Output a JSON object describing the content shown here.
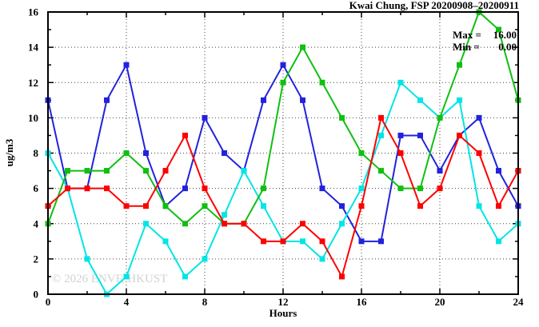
{
  "chart_data": {
    "type": "line",
    "title": "Kwai Chung, FSP 20200908–20200911",
    "xlabel": "Hours",
    "ylabel": "ug/m3",
    "xlim": [
      0,
      24
    ],
    "ylim": [
      0,
      16
    ],
    "grid": {
      "x_gridlines": [
        4,
        8,
        12,
        16,
        20
      ],
      "y_gridlines": [
        2,
        4,
        6,
        8,
        10,
        12,
        14
      ],
      "style": "dotted"
    },
    "x_axis": {
      "ticks_major": [
        0,
        4,
        8,
        12,
        16,
        20,
        24
      ],
      "ticks_minor": [
        2,
        6,
        10,
        14,
        18,
        22
      ],
      "tick_labels": [
        "0",
        "4",
        "8",
        "12",
        "16",
        "20",
        "24"
      ]
    },
    "y_axis": {
      "ticks_major": [
        0,
        2,
        4,
        6,
        8,
        10,
        12,
        14,
        16
      ],
      "ticks_minor": [
        1,
        3,
        5,
        7,
        9,
        11,
        13,
        15
      ],
      "tick_labels": [
        "0",
        "2",
        "4",
        "6",
        "8",
        "10",
        "12",
        "14",
        "16"
      ]
    },
    "x": [
      0,
      1,
      2,
      3,
      4,
      5,
      6,
      7,
      8,
      9,
      10,
      11,
      12,
      13,
      14,
      15,
      16,
      17,
      18,
      19,
      20,
      21,
      22,
      23,
      24
    ],
    "series": [
      {
        "name": "blue",
        "color": "#2222dd",
        "values": [
          11,
          6,
          6,
          11,
          13,
          8,
          5,
          6,
          10,
          8,
          7,
          11,
          13,
          11,
          6,
          5,
          3,
          3,
          9,
          9,
          7,
          9,
          10,
          7,
          5
        ]
      },
      {
        "name": "cyan",
        "color": "#00e5e5",
        "values": [
          8,
          6,
          2,
          0,
          1,
          4,
          3,
          1,
          2,
          4.5,
          7,
          5,
          3,
          3,
          2,
          4,
          6,
          9,
          12,
          11,
          10,
          11,
          5,
          3,
          4
        ]
      },
      {
        "name": "green",
        "color": "#10c010",
        "values": [
          4,
          7,
          7,
          7,
          8,
          7,
          5,
          4,
          5,
          4,
          4,
          6,
          12,
          14,
          12,
          10,
          8,
          7,
          6,
          6,
          10,
          13,
          16,
          15,
          11
        ]
      },
      {
        "name": "red",
        "color": "#ff0000",
        "values": [
          5,
          6,
          6,
          6,
          5,
          5,
          7,
          9,
          6,
          4,
          4,
          3,
          3,
          4,
          3,
          1,
          5,
          10,
          8,
          5,
          6,
          9,
          8,
          5,
          7
        ]
      }
    ],
    "annotation": {
      "max_label": "Max =",
      "max_value": "16.00",
      "min_label": "Min =",
      "min_value": "0.00"
    },
    "watermark": "© 2026 ENVF, HKUST",
    "legend": "none",
    "colors": {
      "axis": "#000000",
      "grid": "#444444",
      "background": "#ffffff"
    }
  }
}
